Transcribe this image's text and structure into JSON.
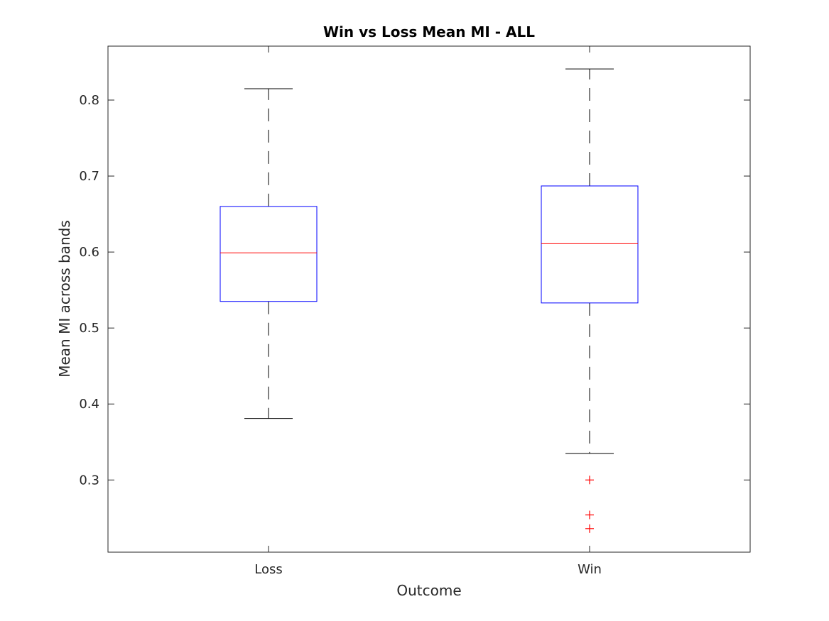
{
  "chart_data": {
    "type": "box",
    "title": "Win vs Loss Mean MI - ALL",
    "xlabel": "Outcome",
    "ylabel": "Mean MI across bands",
    "ylim": [
      0.205,
      0.871
    ],
    "yticks": [
      0.3,
      0.4,
      0.5,
      0.6,
      0.7,
      0.8
    ],
    "ytick_labels": [
      "0.3",
      "0.4",
      "0.5",
      "0.6",
      "0.7",
      "0.8"
    ],
    "categories": [
      "Loss",
      "Win"
    ],
    "boxes": [
      {
        "category": "Loss",
        "whisker_low": 0.381,
        "q1": 0.535,
        "median": 0.599,
        "q3": 0.66,
        "whisker_high": 0.815,
        "outliers": []
      },
      {
        "category": "Win",
        "whisker_low": 0.335,
        "q1": 0.533,
        "median": 0.611,
        "q3": 0.687,
        "whisker_high": 0.841,
        "outliers": [
          0.3,
          0.254,
          0.236
        ]
      }
    ],
    "grid": false,
    "colors": {
      "box": "#0000ff",
      "median": "#ff0000",
      "whisker": "#000000",
      "outlier": "#ff0000",
      "axes": "#262626"
    }
  }
}
